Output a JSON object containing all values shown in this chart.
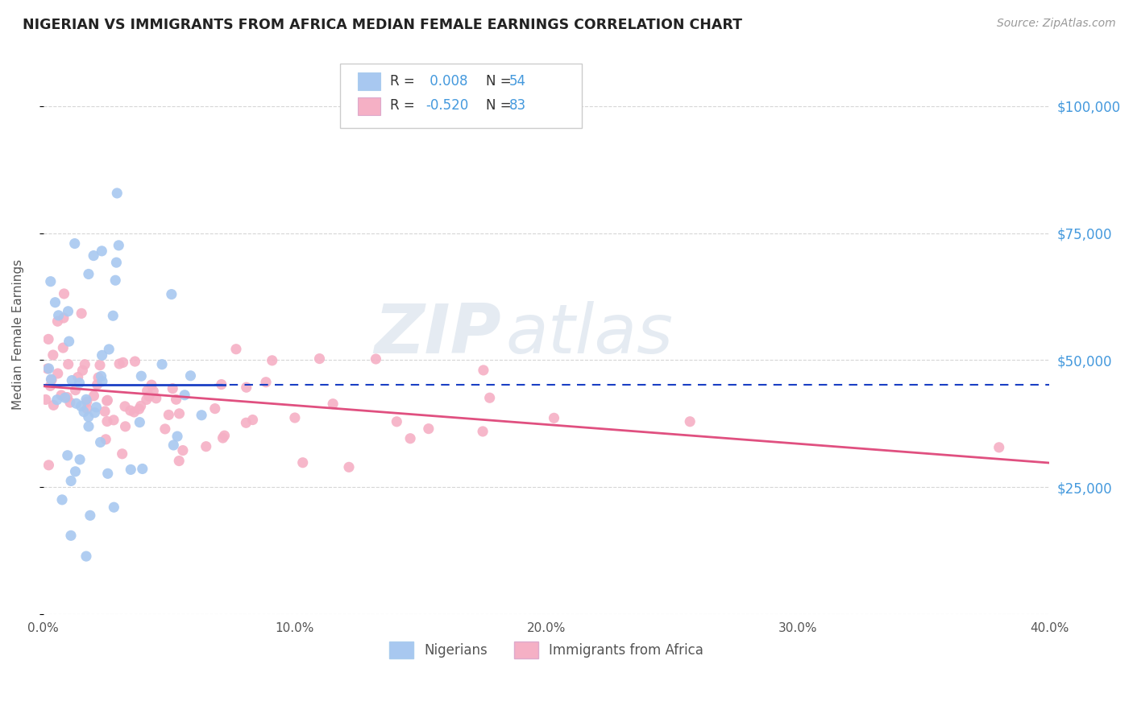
{
  "title": "NIGERIAN VS IMMIGRANTS FROM AFRICA MEDIAN FEMALE EARNINGS CORRELATION CHART",
  "source": "Source: ZipAtlas.com",
  "ylabel": "Median Female Earnings",
  "xlim": [
    0.0,
    0.4
  ],
  "ylim": [
    0,
    110000
  ],
  "yticks": [
    0,
    25000,
    50000,
    75000,
    100000
  ],
  "ytick_labels": [
    "",
    "$25,000",
    "$50,000",
    "$75,000",
    "$100,000"
  ],
  "xtick_labels": [
    "0.0%",
    "10.0%",
    "20.0%",
    "30.0%",
    "40.0%"
  ],
  "xticks": [
    0.0,
    0.1,
    0.2,
    0.3,
    0.4
  ],
  "legend_labels": [
    "Nigerians",
    "Immigrants from Africa"
  ],
  "r_nigerian": "0.008",
  "n_nigerian": "54",
  "r_africa": "-0.520",
  "n_africa": "83",
  "color_nigerian": "#a8c8f0",
  "color_africa": "#f5b0c5",
  "line_color_nigerian": "#1a3fc4",
  "line_color_africa": "#e05080",
  "watermark_zip": "ZIP",
  "watermark_atlas": "atlas",
  "background_color": "#ffffff",
  "grid_color": "#cccccc",
  "title_color": "#222222",
  "axis_label_color": "#555555",
  "ytick_color": "#4499dd",
  "xtick_color": "#555555",
  "legend_value_color": "#4499dd"
}
